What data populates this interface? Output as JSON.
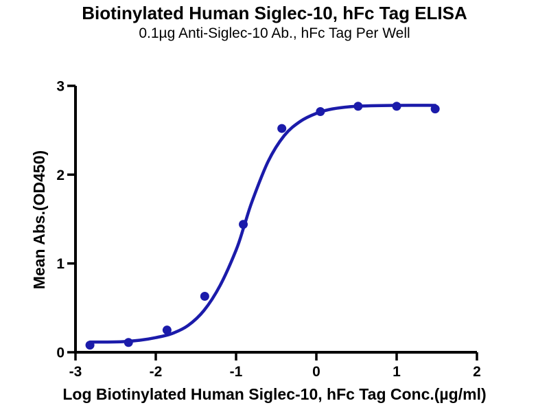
{
  "chart_data": {
    "type": "scatter",
    "title": "Biotinylated Human Siglec-10, hFc Tag ELISA",
    "subtitle": "0.1µg Anti-Siglec-10 Ab., hFc Tag Per Well",
    "xlabel": "Log Biotinylated Human Siglec-10, hFc Tag Conc.(µg/ml)",
    "ylabel": "Mean Abs.(OD450)",
    "xlim": [
      -3,
      2
    ],
    "ylim": [
      0,
      3
    ],
    "xticks": [
      -3,
      -2,
      -1,
      0,
      1,
      2
    ],
    "yticks": [
      0,
      1,
      2,
      3
    ],
    "grid": false,
    "legend": "none",
    "axis_color": "#000000",
    "background_color": "#ffffff",
    "series": [
      {
        "name": "Biotinylated Human Siglec-10, hFc Tag",
        "marker": "circle",
        "color": "#1B1BAA",
        "x": [
          -2.82,
          -2.34,
          -1.86,
          -1.39,
          -0.91,
          -0.43,
          0.05,
          0.52,
          1.0,
          1.48
        ],
        "y": [
          0.08,
          0.11,
          0.25,
          0.63,
          1.44,
          2.52,
          2.71,
          2.77,
          2.77,
          2.74
        ],
        "fit_curve": [
          [
            -2.82,
            0.115
          ],
          [
            -2.6,
            0.115
          ],
          [
            -2.4,
            0.12
          ],
          [
            -2.2,
            0.135
          ],
          [
            -2.0,
            0.165
          ],
          [
            -1.8,
            0.21
          ],
          [
            -1.6,
            0.3
          ],
          [
            -1.4,
            0.47
          ],
          [
            -1.2,
            0.75
          ],
          [
            -1.0,
            1.15
          ],
          [
            -0.9,
            1.42
          ],
          [
            -0.8,
            1.7
          ],
          [
            -0.6,
            2.15
          ],
          [
            -0.4,
            2.44
          ],
          [
            -0.2,
            2.6
          ],
          [
            0.0,
            2.69
          ],
          [
            0.2,
            2.74
          ],
          [
            0.5,
            2.77
          ],
          [
            1.0,
            2.78
          ],
          [
            1.48,
            2.78
          ]
        ]
      }
    ]
  }
}
